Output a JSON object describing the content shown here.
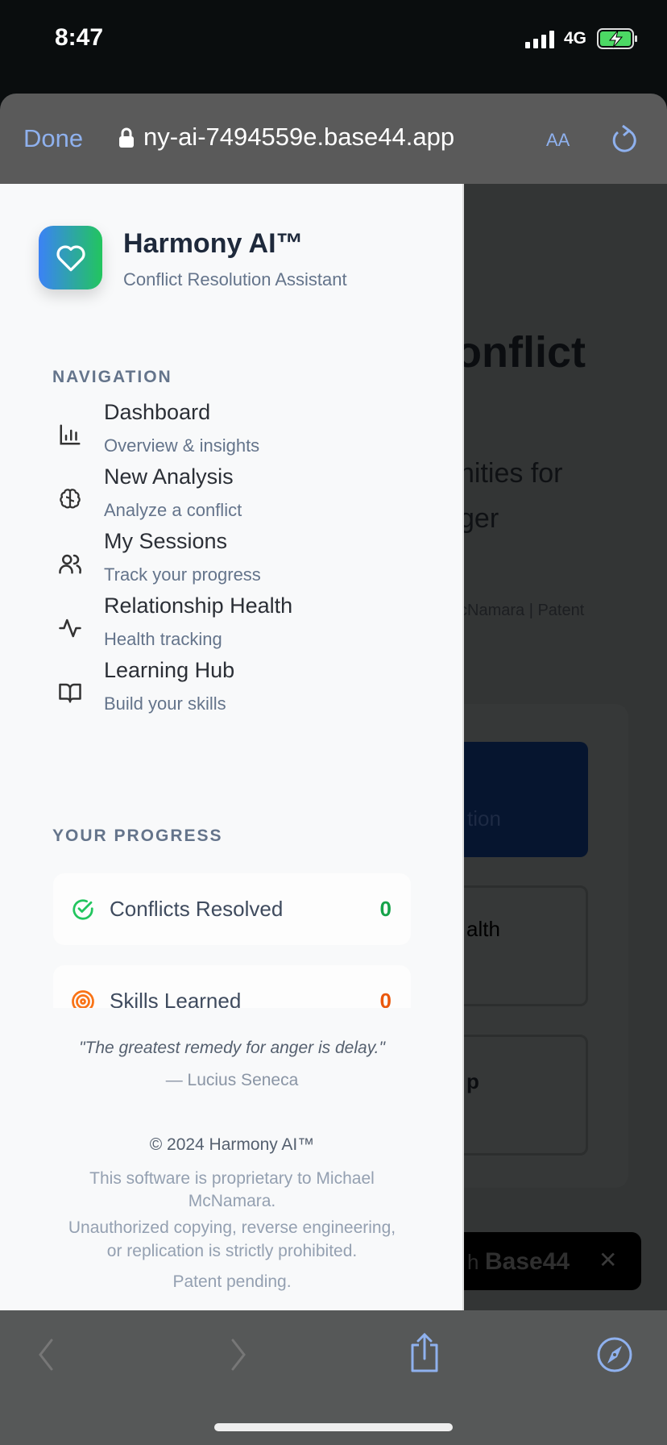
{
  "status_bar": {
    "time": "8:47",
    "network": "4G"
  },
  "browser": {
    "done_label": "Done",
    "url": "ny-ai-7494559e.base44.app",
    "text_size_label": "AA"
  },
  "app": {
    "title": "Harmony AI™",
    "subtitle": "Conflict Resolution Assistant"
  },
  "navigation": {
    "heading": "NAVIGATION",
    "items": [
      {
        "label": "Dashboard",
        "sub": "Overview & insights",
        "icon": "bar-chart-icon"
      },
      {
        "label": "New Analysis",
        "sub": "Analyze a conflict",
        "icon": "brain-icon"
      },
      {
        "label": "My Sessions",
        "sub": "Track your progress",
        "icon": "users-icon"
      },
      {
        "label": "Relationship Health",
        "sub": "Health tracking",
        "icon": "activity-icon"
      },
      {
        "label": "Learning Hub",
        "sub": "Build your skills",
        "icon": "book-open-icon"
      }
    ]
  },
  "progress": {
    "heading": "YOUR PROGRESS",
    "items": [
      {
        "label": "Conflicts Resolved",
        "value": "0",
        "color": "#16a34a"
      },
      {
        "label": "Skills Learned",
        "value": "0",
        "color": "#ea580c"
      }
    ]
  },
  "quote": {
    "text": "\"The greatest remedy for anger is delay.\"",
    "author": "— Lucius Seneca"
  },
  "footer": {
    "copyright": "© 2024 Harmony AI™",
    "line1": "This software is proprietary to Michael",
    "line2": "McNamara.",
    "line3": "Unauthorized copying, reverse engineering,",
    "line4": "or replication is strictly prohibited.",
    "patent": "Patent pending."
  },
  "background_page": {
    "heading_fragment": "onflict",
    "line1": "nities for",
    "line2": "ger",
    "credit": "cNamara | Patent",
    "button_fragment": "tion",
    "card1_fragment": "alth",
    "card2_fragment": "p",
    "badge_prefix": "h",
    "badge_brand": "Base44"
  }
}
